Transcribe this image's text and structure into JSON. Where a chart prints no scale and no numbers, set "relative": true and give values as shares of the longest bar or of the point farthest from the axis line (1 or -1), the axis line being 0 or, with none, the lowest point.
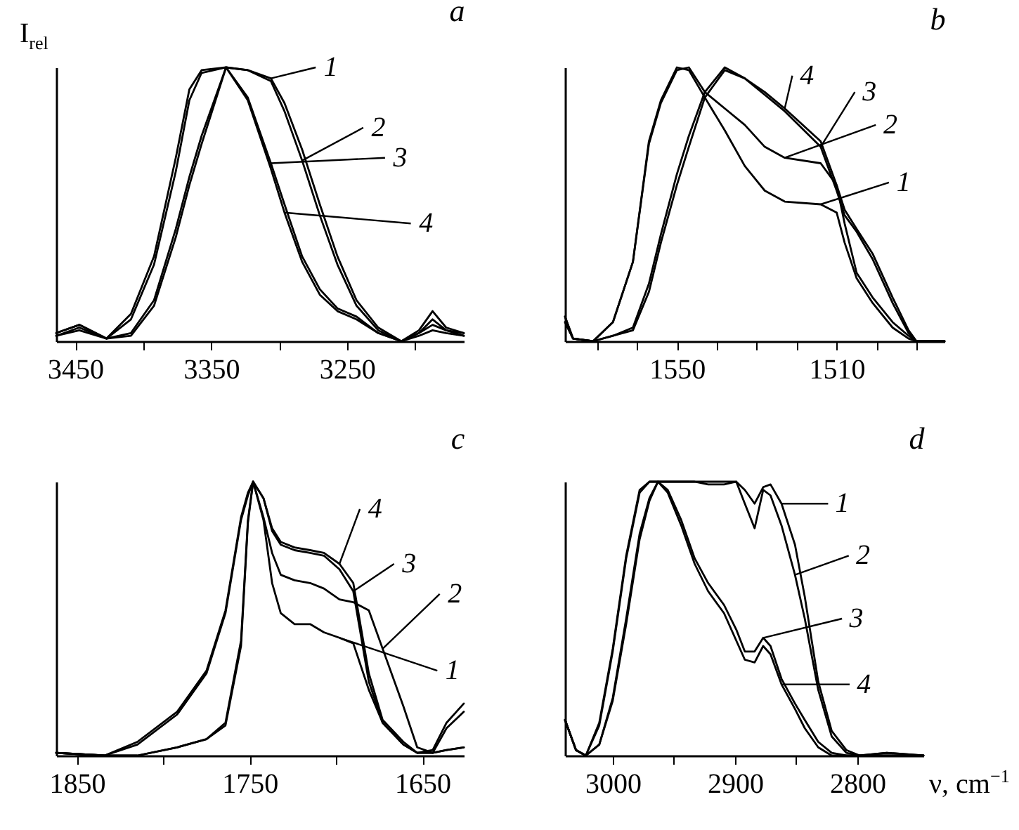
{
  "chart_data": [
    {
      "type": "line",
      "title": "a",
      "ylabel": "I$_{rel}$",
      "relative": true,
      "legend": "top right",
      "xlim": [
        3464,
        3164
      ],
      "xticks": [
        3450,
        {
          "value": 3400,
          "label": null
        },
        3350,
        {
          "value": 3300,
          "label": null
        },
        3250,
        {
          "value": 3200,
          "label": null
        }
      ],
      "x": [
        3464,
        3447,
        3427,
        3409,
        3392,
        3376,
        3366,
        3357,
        3339,
        3323,
        3306,
        3296,
        3283,
        3270,
        3257,
        3243,
        3227,
        3210,
        3197,
        3187,
        3177,
        3164
      ],
      "series": [
        {
          "name": "1",
          "color": "#000000",
          "values": [
            0.03,
            0.06,
            0.01,
            0.1,
            0.31,
            0.67,
            0.92,
            0.99,
            1,
            0.99,
            0.96,
            0.87,
            0.7,
            0.5,
            0.31,
            0.15,
            0.05,
            0,
            0.04,
            0.11,
            0.05,
            0.03
          ]
        },
        {
          "name": "2",
          "color": "#000000",
          "values": [
            0.03,
            0.06,
            0.01,
            0.08,
            0.28,
            0.62,
            0.88,
            0.98,
            1,
            0.99,
            0.95,
            0.84,
            0.66,
            0.46,
            0.28,
            0.13,
            0.04,
            0,
            0.03,
            0.08,
            0.04,
            0.03
          ]
        },
        {
          "name": "3",
          "color": "#000000",
          "values": [
            0.02,
            0.05,
            0.01,
            0.03,
            0.15,
            0.41,
            0.6,
            0.75,
            1,
            0.89,
            0.65,
            0.5,
            0.31,
            0.19,
            0.12,
            0.09,
            0.03,
            0,
            0.03,
            0.06,
            0.04,
            0.02
          ]
        },
        {
          "name": "4",
          "color": "#000000",
          "values": [
            0.02,
            0.04,
            0.01,
            0.02,
            0.13,
            0.38,
            0.57,
            0.72,
            1,
            0.88,
            0.63,
            0.47,
            0.29,
            0.17,
            0.11,
            0.08,
            0.03,
            0,
            0.02,
            0.04,
            0.03,
            0.02
          ]
        }
      ]
    },
    {
      "type": "line",
      "title": "b",
      "relative": true,
      "legend": "top right",
      "xlim": [
        1578,
        1483
      ],
      "xticks": [
        {
          "value": 1570,
          "label": null
        },
        {
          "value": 1560,
          "label": null
        },
        1550,
        {
          "value": 1540,
          "label": null
        },
        {
          "value": 1530,
          "label": null
        },
        {
          "value": 1520,
          "label": null
        },
        1510,
        {
          "value": 1500,
          "label": null
        },
        {
          "value": 1490,
          "label": null
        }
      ],
      "x": [
        1578,
        1576,
        1571,
        1566,
        1561,
        1557,
        1554,
        1550,
        1547,
        1543,
        1538,
        1533,
        1528,
        1523,
        1514,
        1510,
        1508,
        1505,
        1501,
        1496,
        1492,
        1490,
        1483
      ],
      "series": [
        {
          "name": "1",
          "color": "#000000",
          "values": [
            0.09,
            0.01,
            0,
            0.07,
            0.29,
            0.73,
            0.88,
            1,
            0.99,
            0.89,
            0.77,
            0.64,
            0.55,
            0.51,
            0.5,
            0.47,
            0.36,
            0.23,
            0.14,
            0.05,
            0.01,
            0,
            0
          ]
        },
        {
          "name": "2",
          "color": "#000000",
          "values": [
            0.09,
            0.01,
            0,
            0.07,
            0.29,
            0.72,
            0.87,
            0.99,
            1,
            0.91,
            0.85,
            0.79,
            0.71,
            0.67,
            0.65,
            0.57,
            0.43,
            0.25,
            0.16,
            0.07,
            0.02,
            0,
            0
          ]
        },
        {
          "name": "3",
          "color": "#000000",
          "values": [
            0.07,
            0.01,
            0,
            0.02,
            0.04,
            0.18,
            0.36,
            0.57,
            0.71,
            0.89,
            0.99,
            0.96,
            0.9,
            0.84,
            0.71,
            0.55,
            0.46,
            0.4,
            0.3,
            0.14,
            0.03,
            0,
            0
          ]
        },
        {
          "name": "4",
          "color": "#000000",
          "values": [
            0.07,
            0.01,
            0,
            0.02,
            0.05,
            0.21,
            0.39,
            0.61,
            0.75,
            0.91,
            1,
            0.96,
            0.91,
            0.85,
            0.73,
            0.57,
            0.48,
            0.41,
            0.32,
            0.16,
            0.04,
            0,
            0
          ]
        }
      ]
    },
    {
      "type": "line",
      "title": "c",
      "relative": true,
      "legend": "right",
      "xlim": [
        1862,
        1626
      ],
      "xticks": [
        1850,
        {
          "value": 1800,
          "label": null
        },
        1750,
        {
          "value": 1700,
          "label": null
        },
        1650
      ],
      "x": [
        1862,
        1834,
        1815,
        1792,
        1775,
        1764,
        1755,
        1751,
        1748,
        1742,
        1737,
        1732,
        1724,
        1715,
        1707,
        1698,
        1690,
        1681,
        1673,
        1661,
        1653,
        1644,
        1636,
        1626
      ],
      "series": [
        {
          "name": "1",
          "color": "#000000",
          "values": [
            0.01,
            0,
            0,
            0.03,
            0.06,
            0.12,
            0.42,
            0.86,
            1,
            0.86,
            0.63,
            0.52,
            0.48,
            0.48,
            0.45,
            0.43,
            0.41,
            0.24,
            0.12,
            0.04,
            0.01,
            0.01,
            0.02,
            0.03
          ]
        },
        {
          "name": "2",
          "color": "#000000",
          "values": [
            0.01,
            0,
            0,
            0.03,
            0.06,
            0.11,
            0.4,
            0.85,
            1,
            0.87,
            0.74,
            0.66,
            0.64,
            0.63,
            0.61,
            0.57,
            0.56,
            0.53,
            0.39,
            0.18,
            0.03,
            0.01,
            0.02,
            0.03
          ]
        },
        {
          "name": "3",
          "color": "#000000",
          "values": [
            0.01,
            0,
            0.04,
            0.15,
            0.3,
            0.52,
            0.86,
            0.95,
            1,
            0.94,
            0.82,
            0.77,
            0.75,
            0.74,
            0.73,
            0.68,
            0.6,
            0.27,
            0.12,
            0.04,
            0.01,
            0.01,
            0.1,
            0.16
          ]
        },
        {
          "name": "4",
          "color": "#000000",
          "values": [
            0.01,
            0,
            0.05,
            0.16,
            0.31,
            0.53,
            0.87,
            0.96,
            1,
            0.94,
            0.83,
            0.78,
            0.76,
            0.75,
            0.74,
            0.7,
            0.63,
            0.3,
            0.13,
            0.05,
            0.01,
            0.02,
            0.12,
            0.19
          ]
        }
      ]
    },
    {
      "type": "line",
      "title": "d",
      "xlabel": "ν, cm$^{−1}$",
      "relative": true,
      "legend": "right",
      "xlim": [
        3039,
        2746
      ],
      "xticks": [
        3000,
        {
          "value": 2950,
          "label": null
        },
        2900,
        {
          "value": 2850,
          "label": null
        },
        2800
      ],
      "x": [
        3039,
        3030,
        3022,
        3011,
        3000,
        2989,
        2978,
        2970,
        2963,
        2955,
        2944,
        2933,
        2922,
        2909,
        2899,
        2892,
        2884,
        2877,
        2871,
        2862,
        2851,
        2843,
        2832,
        2821,
        2809,
        2798,
        2776,
        2746
      ],
      "series": [
        {
          "name": "1",
          "color": "#000000",
          "values": [
            0.13,
            0.02,
            0,
            0.04,
            0.21,
            0.5,
            0.81,
            0.94,
            1,
            1,
            1,
            1,
            1,
            1,
            1,
            0.97,
            0.92,
            0.98,
            0.99,
            0.92,
            0.77,
            0.58,
            0.27,
            0.09,
            0.02,
            0,
            0,
            0
          ]
        },
        {
          "name": "2",
          "color": "#000000",
          "values": [
            0.13,
            0.02,
            0,
            0.04,
            0.2,
            0.48,
            0.79,
            0.93,
            1,
            1,
            1,
            1,
            0.99,
            0.99,
            1,
            0.92,
            0.83,
            0.97,
            0.95,
            0.84,
            0.66,
            0.5,
            0.24,
            0.07,
            0.01,
            0,
            0,
            0
          ]
        },
        {
          "name": "3",
          "color": "#000000",
          "values": [
            0.13,
            0.02,
            0,
            0.12,
            0.39,
            0.73,
            0.97,
            1,
            1,
            0.97,
            0.86,
            0.72,
            0.63,
            0.55,
            0.46,
            0.38,
            0.38,
            0.43,
            0.4,
            0.28,
            0.19,
            0.13,
            0.05,
            0.01,
            0,
            0,
            0.01,
            0
          ]
        },
        {
          "name": "4",
          "color": "#000000",
          "values": [
            0.13,
            0.02,
            0,
            0.11,
            0.38,
            0.72,
            0.96,
            1,
            1,
            0.96,
            0.84,
            0.7,
            0.6,
            0.52,
            0.42,
            0.35,
            0.34,
            0.4,
            0.37,
            0.26,
            0.17,
            0.1,
            0.03,
            0,
            0,
            0,
            0.01,
            0
          ]
        }
      ]
    }
  ]
}
